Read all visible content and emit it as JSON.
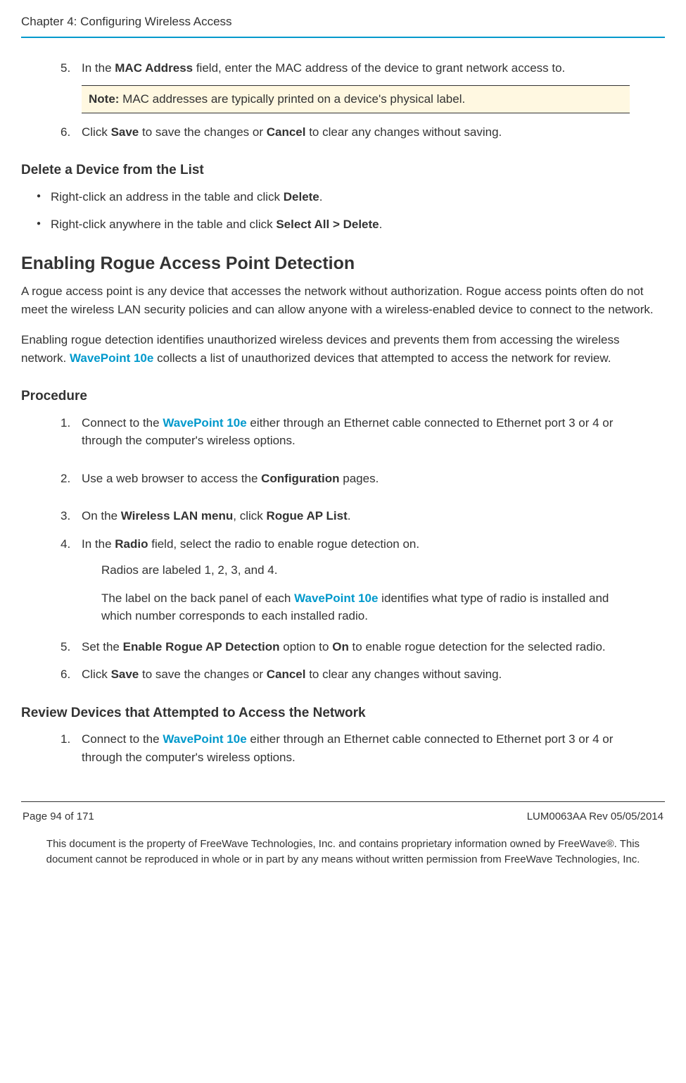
{
  "header": {
    "chapter": "Chapter 4: Configuring Wireless Access"
  },
  "colors": {
    "accent": "#0099cc",
    "note_bg": "#fff8e1",
    "text": "#333333"
  },
  "step5": {
    "num": "5.",
    "pre": "In the ",
    "bold1": "MAC Address",
    "post": " field, enter the MAC address of the device to grant network access to.",
    "note_label": "Note:",
    "note_text": " MAC addresses are typically printed on a device's physical label."
  },
  "step6": {
    "num": "6.",
    "t1": "Click ",
    "b1": "Save",
    "t2": " to save the changes or ",
    "b2": "Cancel",
    "t3": " to clear any changes without saving."
  },
  "delete_section": {
    "title": "Delete a Device from the List",
    "item1_t1": "Right-click an address in the table and click ",
    "item1_b1": "Delete",
    "item1_t2": ".",
    "item2_t1": "Right-click anywhere in the table and click ",
    "item2_b1": "Select All > Delete",
    "item2_t2": "."
  },
  "rogue_section": {
    "title": "Enabling Rogue Access Point Detection",
    "para1": "A rogue access point is any device that accesses the network without authorization. Rogue access points often do not meet the wireless LAN security policies and can allow anyone with a wireless-enabled device to connect to the network.",
    "para2_t1": "Enabling rogue detection identifies unauthorized wireless devices and prevents them from accessing the wireless network. ",
    "para2_link": "WavePoint 10e",
    "para2_t2": " collects a list of unauthorized devices that attempted to access the network for review."
  },
  "procedure": {
    "title": "Procedure",
    "s1": {
      "num": "1.",
      "t1": "Connect to the ",
      "link": "WavePoint 10e",
      "t2": " either through an Ethernet cable connected to Ethernet port 3 or 4 or through the computer's wireless options."
    },
    "s2": {
      "num": "2.",
      "t1": "Use a web browser to access the ",
      "b1": "Configuration",
      "t2": " pages."
    },
    "s3": {
      "num": "3.",
      "t1": "On the ",
      "b1": "Wireless LAN menu",
      "t2": ", click ",
      "b2": "Rogue AP List",
      "t3": "."
    },
    "s4": {
      "num": "4.",
      "t1": "In the ",
      "b1": "Radio",
      "t2": " field, select the radio to enable rogue detection on.",
      "sub1": "Radios are labeled 1, 2, 3, and 4.",
      "sub2_t1": "The label on the back panel of each ",
      "sub2_link": "WavePoint 10e",
      "sub2_t2": " identifies what type of radio is installed and which number corresponds to each installed radio."
    },
    "s5": {
      "num": "5.",
      "t1": "Set the ",
      "b1": "Enable Rogue AP Detection",
      "t2": " option to ",
      "b2": "On",
      "t3": " to enable rogue detection for the selected radio."
    },
    "s6": {
      "num": "6.",
      "t1": "Click ",
      "b1": "Save",
      "t2": " to save the changes or ",
      "b2": "Cancel",
      "t3": " to clear any changes without saving."
    }
  },
  "review_section": {
    "title": "Review Devices that Attempted to Access the Network",
    "s1": {
      "num": "1.",
      "t1": "Connect to the ",
      "link": "WavePoint 10e",
      "t2": " either through an Ethernet cable connected to Ethernet port 3 or 4 or through the computer's wireless options."
    }
  },
  "footer": {
    "page": "Page 94 of 171",
    "rev": "LUM0063AA Rev 05/05/2014",
    "disclaimer": "This document is the property of FreeWave Technologies, Inc. and contains proprietary information owned by FreeWave®. This document cannot be reproduced in whole or in part by any means without written permission from FreeWave Technologies, Inc."
  }
}
